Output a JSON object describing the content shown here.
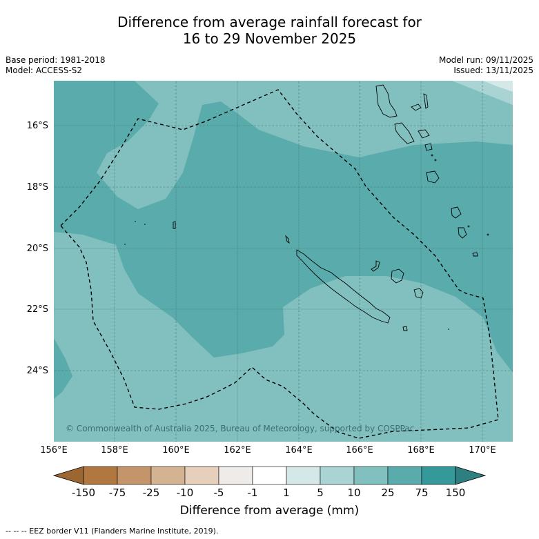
{
  "title_line1": "Difference from average rainfall forecast for",
  "title_line2": "16 to 29 November 2025",
  "base_period": "Base period: 1981-2018",
  "model": "Model: ACCESS-S2",
  "model_run": "Model run: 09/11/2025",
  "issued": "Issued: 13/11/2025",
  "lat_labels": [
    "16°S",
    "18°S",
    "20°S",
    "22°S",
    "24°S"
  ],
  "lon_labels": [
    "156°E",
    "158°E",
    "160°E",
    "162°E",
    "164°E",
    "166°E",
    "168°E",
    "170°E"
  ],
  "copyright": "© Commonwealth of Australia 2025, Bureau of Meteorology, supported by COSPPac",
  "colorbar": {
    "labels": [
      "-150",
      "-75",
      "-25",
      "-10",
      "-5",
      "-1",
      "1",
      "5",
      "10",
      "25",
      "75",
      "150"
    ],
    "colors": [
      "#9c6632",
      "#b07840",
      "#c4956a",
      "#d4b393",
      "#e6d0bc",
      "#eeebe8",
      "#ffffff",
      "#d4e9e7",
      "#aad4d3",
      "#82c0bf",
      "#5aabab",
      "#35999a",
      "#2d7f80"
    ],
    "title": "Difference from average (mm)"
  },
  "footer": "--  --  -- EEZ border V11 (Flanders Marine Institute, 2019)."
}
